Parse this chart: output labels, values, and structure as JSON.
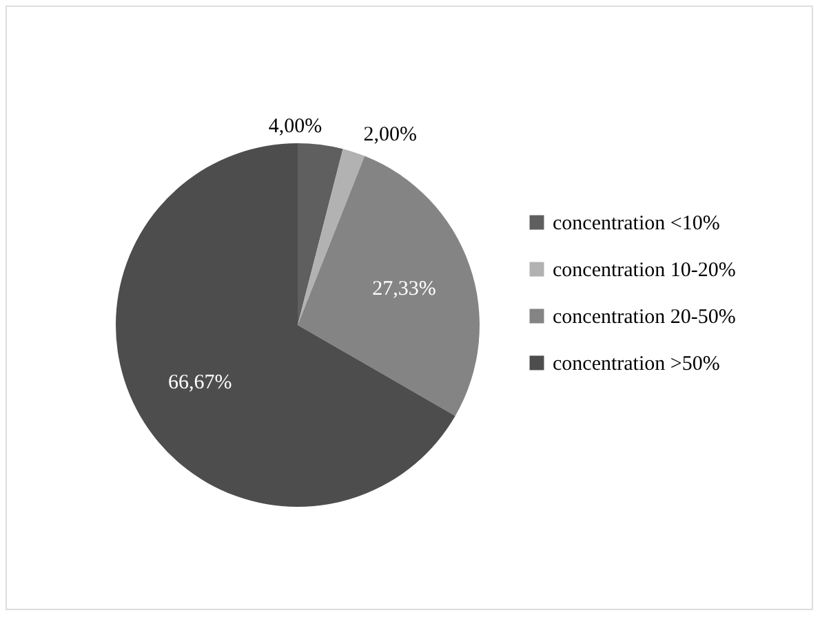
{
  "chart_data": {
    "type": "pie",
    "categories": [
      "concentration <10%",
      "concentration 10-20%",
      "concentration 20-50%",
      "concentration >50%"
    ],
    "values": [
      4.0,
      2.0,
      27.33,
      66.67
    ],
    "colors": [
      "#5f5f5f",
      "#b2b2b2",
      "#848484",
      "#4d4d4d"
    ],
    "value_labels": [
      "4,00%",
      "2,00%",
      "27,33%",
      "66,67%"
    ],
    "legend": "right"
  }
}
